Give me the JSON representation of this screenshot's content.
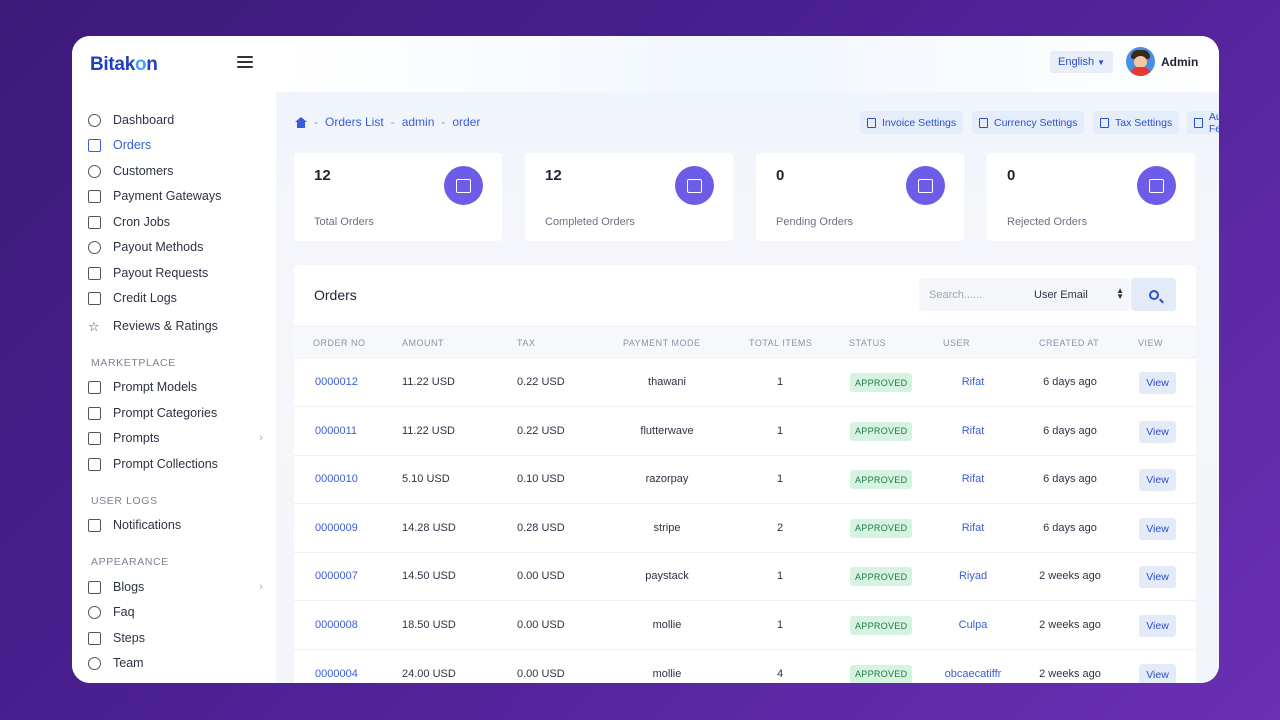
{
  "app": {
    "logo_main": "Bitak",
    "logo_accent": "o",
    "logo_end": "n"
  },
  "header": {
    "language": "English",
    "admin": "Admin"
  },
  "sidebar": {
    "items": [
      {
        "label": "Dashboard",
        "icon": "dashboard-icon"
      },
      {
        "label": "Orders",
        "icon": "orders-icon",
        "active": true
      },
      {
        "label": "Customers",
        "icon": "customers-icon"
      },
      {
        "label": "Payment Gateways",
        "icon": "bank-icon"
      },
      {
        "label": "Cron Jobs",
        "icon": "calendar-icon"
      },
      {
        "label": "Payout Methods",
        "icon": "payout-method-icon"
      },
      {
        "label": "Payout Requests",
        "icon": "payout-request-icon"
      },
      {
        "label": "Credit Logs",
        "icon": "credit-icon"
      },
      {
        "label": "Reviews & Ratings",
        "icon": "star-icon"
      }
    ],
    "section_marketplace": "MARKETPLACE",
    "marketplace": [
      {
        "label": "Prompt Models"
      },
      {
        "label": "Prompt Categories"
      },
      {
        "label": "Prompts"
      },
      {
        "label": "Prompt Collections"
      }
    ],
    "section_userlogs": "USER LOGS",
    "userlogs": [
      {
        "label": "Notifications"
      }
    ],
    "section_appearance": "APPEARANCE",
    "appearance": [
      {
        "label": "Blogs"
      },
      {
        "label": "Faq"
      },
      {
        "label": "Steps"
      },
      {
        "label": "Team"
      }
    ]
  },
  "breadcrumb": {
    "sep": "-",
    "items": [
      "Orders List",
      "admin",
      "order"
    ]
  },
  "actions": {
    "invoice": "Invoice Settings",
    "currency": "Currency Settings",
    "tax": "Tax Settings",
    "author": "Author Fee"
  },
  "stats": [
    {
      "value": "12",
      "label": "Total Orders"
    },
    {
      "value": "12",
      "label": "Completed Orders"
    },
    {
      "value": "0",
      "label": "Pending Orders"
    },
    {
      "value": "0",
      "label": "Rejected Orders"
    }
  ],
  "orders": {
    "title": "Orders",
    "search_placeholder": "Search......",
    "filter_value": "User Email",
    "columns": [
      "ORDER NO",
      "AMOUNT",
      "TAX",
      "PAYMENT MODE",
      "TOTAL ITEMS",
      "STATUS",
      "USER",
      "CREATED AT",
      "VIEW"
    ],
    "view_label": "View",
    "rows": [
      {
        "no": "0000012",
        "amount": "11.22 USD",
        "tax": "0.22 USD",
        "mode": "thawani",
        "items": "1",
        "status": "APPROVED",
        "user": "Rifat",
        "created": "6 days ago"
      },
      {
        "no": "0000011",
        "amount": "11.22 USD",
        "tax": "0.22 USD",
        "mode": "flutterwave",
        "items": "1",
        "status": "APPROVED",
        "user": "Rifat",
        "created": "6 days ago"
      },
      {
        "no": "0000010",
        "amount": "5.10 USD",
        "tax": "0.10 USD",
        "mode": "razorpay",
        "items": "1",
        "status": "APPROVED",
        "user": "Rifat",
        "created": "6 days ago"
      },
      {
        "no": "0000009",
        "amount": "14.28 USD",
        "tax": "0.28 USD",
        "mode": "stripe",
        "items": "2",
        "status": "APPROVED",
        "user": "Rifat",
        "created": "6 days ago"
      },
      {
        "no": "0000007",
        "amount": "14.50 USD",
        "tax": "0.00 USD",
        "mode": "paystack",
        "items": "1",
        "status": "APPROVED",
        "user": "Riyad",
        "created": "2 weeks ago"
      },
      {
        "no": "0000008",
        "amount": "18.50 USD",
        "tax": "0.00 USD",
        "mode": "mollie",
        "items": "1",
        "status": "APPROVED",
        "user": "Culpa",
        "created": "2 weeks ago"
      },
      {
        "no": "0000004",
        "amount": "24.00 USD",
        "tax": "0.00 USD",
        "mode": "mollie",
        "items": "4",
        "status": "APPROVED",
        "user": "obcaecatiffr",
        "created": "2 weeks ago"
      }
    ]
  },
  "colors": {
    "accent": "#3b5bdb",
    "badge": "#6c5ce7",
    "approved_bg": "#d6f3e1"
  }
}
